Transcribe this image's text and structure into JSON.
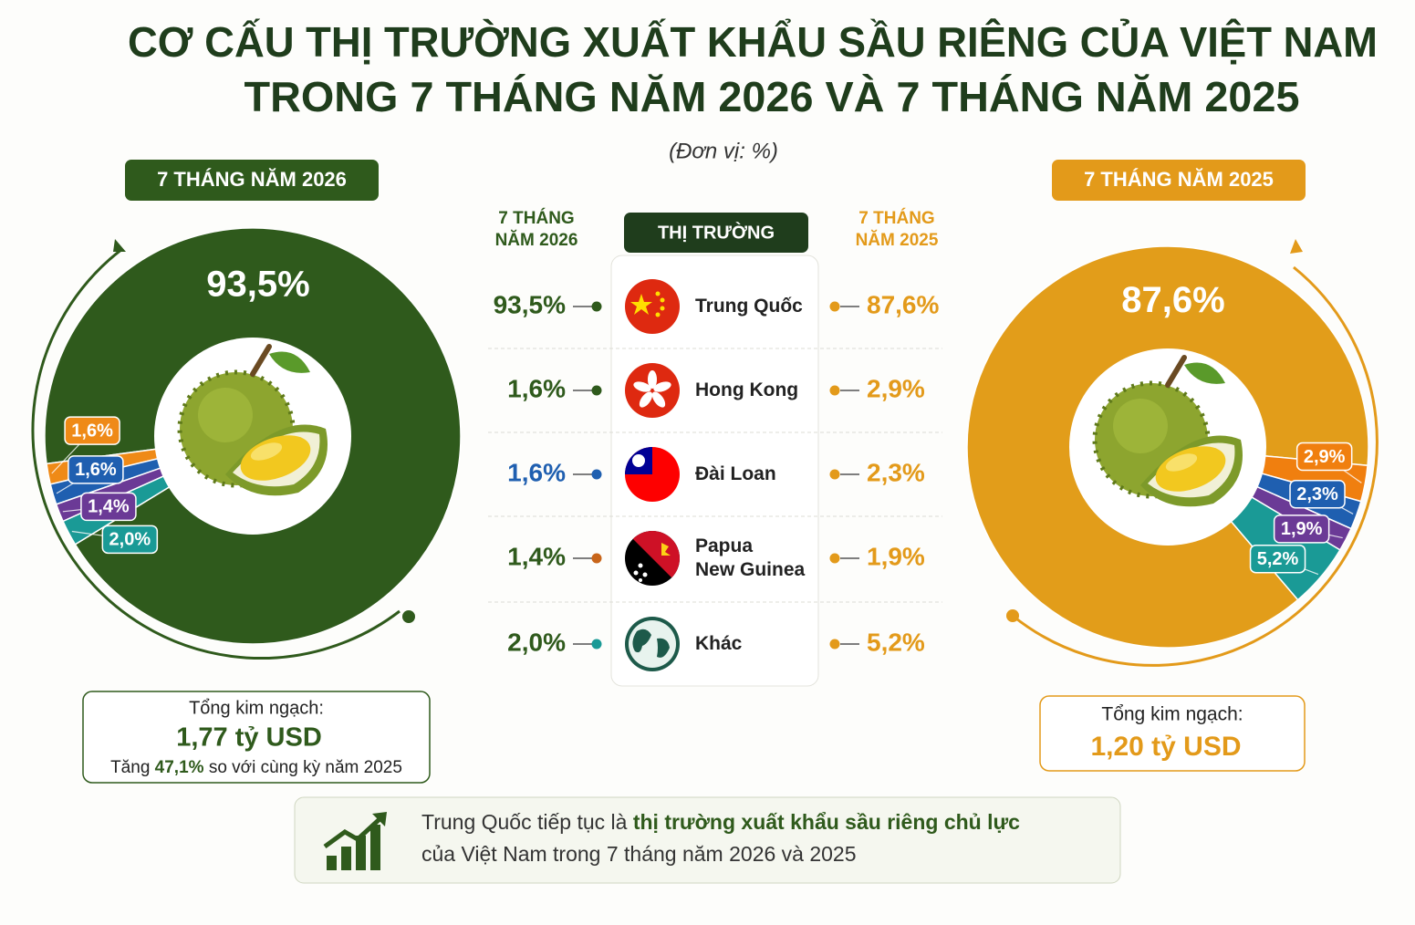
{
  "title": [
    "CƠ CẤU THỊ TRƯỜNG XUẤT KHẨU SẦU RIÊNG CỦA VIỆT NAM",
    "TRONG 7 THÁNG NĂM 2026 VÀ 7 THÁNG NĂM 2025"
  ],
  "unit": "(Đơn vị: %)",
  "table": {
    "header": "THỊ TRƯỜNG",
    "col_left": "7 THÁNG\nNĂM 2026",
    "col_right": "7 THÁNG\nNĂM 2025"
  },
  "chart_data": [
    {
      "type": "pie",
      "title": "7 THÁNG NĂM 2026",
      "categories": [
        "Trung Quốc",
        "Hong Kong",
        "Đài Loan",
        "Papua\nNew Guinea",
        "Khác"
      ],
      "values": [
        93.5,
        1.6,
        1.6,
        1.4,
        2.0
      ],
      "value_labels": [
        "93,5%",
        "1,6%",
        "1,6%",
        "1,4%",
        "2,0%"
      ],
      "colors": [
        "#2f5a1c",
        "#ef8a17",
        "#1f5fb0",
        "#6b3a96",
        "#1a9a96"
      ],
      "total_label": "Tổng kim ngạch:",
      "total": "1,77 tỷ USD",
      "growth": [
        "Tăng ",
        "47,1%",
        " so với cùng kỳ năm 2025"
      ]
    },
    {
      "type": "pie",
      "title": "7 THÁNG NĂM 2025",
      "categories": [
        "Trung Quốc",
        "Hong Kong",
        "Đài Loan",
        "Papua\nNew Guinea",
        "Khác"
      ],
      "values": [
        87.6,
        2.9,
        2.3,
        1.9,
        5.2
      ],
      "value_labels": [
        "87,6%",
        "2,9%",
        "2,3%",
        "1,9%",
        "5,2%"
      ],
      "colors": [
        "#e29d1a",
        "#f07f0f",
        "#1f5fb0",
        "#6b3a96",
        "#1a9a96"
      ],
      "total_label": "Tổng kim ngạch:",
      "total": "1,20 tỷ USD"
    }
  ],
  "note": {
    "text_1": "Trung Quốc tiếp tục là ",
    "highlight": "thị trường xuất khẩu sầu riêng chủ lực",
    "text_2": "của Việt Nam trong 7 tháng năm 2026 và 2025"
  }
}
